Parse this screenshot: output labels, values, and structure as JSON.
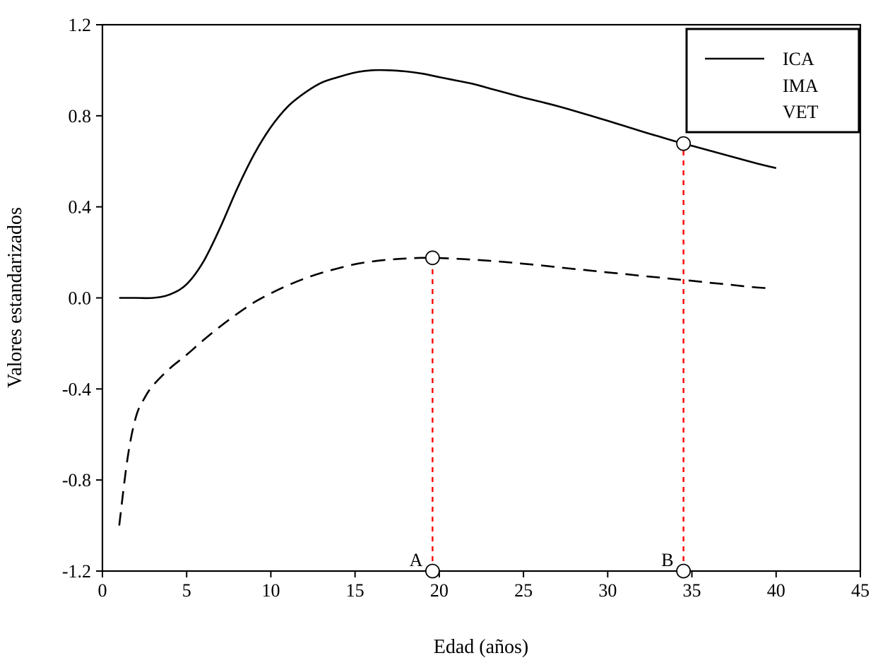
{
  "figure": {
    "background": "#ffffff"
  },
  "chart_data": {
    "type": "line",
    "title": "",
    "xlabel": "Edad (años)",
    "ylabel": "Valores estandarizados",
    "xlim": [
      0,
      45
    ],
    "ylim": [
      -1.2,
      1.2
    ],
    "grid": false,
    "axis_color": "#000000",
    "xticks": {
      "values": [
        0,
        5,
        10,
        15,
        20,
        25,
        30,
        35,
        40,
        45
      ],
      "labels": [
        "0",
        "5",
        "10",
        "15",
        "20",
        "25",
        "30",
        "35",
        "40",
        "45"
      ]
    },
    "yticks": {
      "values": [
        -1.2,
        -0.8,
        -0.4,
        0,
        0.4,
        0.8,
        1.2
      ],
      "labels": [
        "-1.2",
        "-0.8",
        "-0.4",
        "0.0",
        "0.4",
        "0.8",
        "1.2"
      ]
    },
    "legend": {
      "position": "top-right",
      "border": true,
      "entries": [
        {
          "label": "ICA",
          "sample": "solid",
          "color": "#000000"
        },
        {
          "label": "IMA",
          "sample": "none",
          "color": "#000000"
        },
        {
          "label": "VET",
          "sample": "none",
          "color": "#000000"
        }
      ]
    },
    "series": [
      {
        "name": "ICA",
        "style": "solid",
        "color": "#000000",
        "x": [
          1,
          2,
          3,
          4,
          5,
          6,
          7,
          8,
          9,
          10,
          11,
          12,
          13,
          14,
          15,
          16,
          17,
          18,
          19,
          20,
          21,
          22,
          23,
          24,
          25,
          26,
          27,
          28,
          29,
          30,
          31,
          32,
          33,
          34,
          35,
          36,
          37,
          38,
          39,
          40
        ],
        "y": [
          0.0,
          0.0,
          0.0,
          0.015,
          0.06,
          0.16,
          0.31,
          0.48,
          0.63,
          0.75,
          0.84,
          0.9,
          0.945,
          0.97,
          0.99,
          1.0,
          1.0,
          0.995,
          0.985,
          0.97,
          0.955,
          0.94,
          0.92,
          0.9,
          0.88,
          0.862,
          0.843,
          0.822,
          0.8,
          0.778,
          0.755,
          0.732,
          0.71,
          0.688,
          0.668,
          0.648,
          0.628,
          0.608,
          0.588,
          0.57
        ]
      },
      {
        "name": "IMA",
        "style": "dashed",
        "color": "#000000",
        "x": [
          1,
          1.5,
          2,
          2.5,
          3,
          4,
          5,
          6,
          7,
          8,
          9,
          10,
          11,
          12,
          13,
          14,
          15,
          16,
          17,
          18,
          19,
          20,
          21,
          22,
          23,
          24,
          25,
          26,
          27,
          28,
          29,
          30,
          31,
          32,
          33,
          34,
          35,
          36,
          37,
          38,
          39,
          39.7
        ],
        "y": [
          -1.0,
          -0.7,
          -0.52,
          -0.44,
          -0.385,
          -0.31,
          -0.25,
          -0.185,
          -0.125,
          -0.07,
          -0.02,
          0.02,
          0.055,
          0.085,
          0.11,
          0.13,
          0.148,
          0.16,
          0.168,
          0.173,
          0.176,
          0.175,
          0.172,
          0.168,
          0.163,
          0.157,
          0.15,
          0.143,
          0.135,
          0.127,
          0.12,
          0.112,
          0.105,
          0.097,
          0.09,
          0.082,
          0.075,
          0.067,
          0.06,
          0.052,
          0.045,
          0.042
        ]
      }
    ],
    "annotations": {
      "vlines": [
        {
          "label": "A",
          "x": 19.6,
          "y_from": -1.2,
          "y_to": 0.176,
          "color": "#ff0000",
          "style": "dashed"
        },
        {
          "label": "B",
          "x": 34.5,
          "y_from": -1.2,
          "y_to": 0.678,
          "color": "#ff0000",
          "style": "dashed"
        }
      ],
      "markers": [
        {
          "x": 19.6,
          "y": 0.176
        },
        {
          "x": 19.6,
          "y": -1.2
        },
        {
          "x": 34.5,
          "y": 0.678
        },
        {
          "x": 34.5,
          "y": -1.2
        }
      ]
    }
  }
}
